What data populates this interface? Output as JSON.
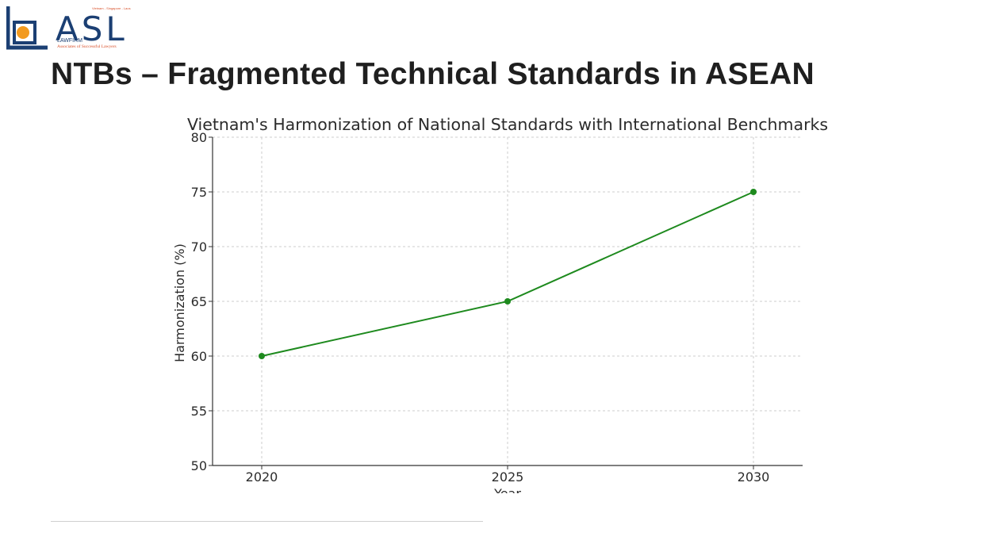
{
  "logo": {
    "wordmark": "ASL",
    "tagline_top": "Vietnam - Singapore - Laos",
    "lawfirm": "LAWFIRM",
    "subtitle": "Associates of Successful Lawyers",
    "colors": {
      "navy": "#1b3f73",
      "orange": "#f29a1f",
      "red": "#d9502a"
    }
  },
  "slide_title": "NTBs – Fragmented Technical Standards in ASEAN",
  "chart_data": {
    "type": "line",
    "title": "Vietnam's Harmonization of National Standards with International Benchmarks",
    "xlabel": "Year",
    "ylabel": "Harmonization (%)",
    "x": [
      2020,
      2025,
      2030
    ],
    "series": [
      {
        "values": [
          60,
          65,
          75
        ],
        "color": "#1e8a1e",
        "marker": "circle"
      }
    ],
    "xticks": [
      2020,
      2025,
      2030
    ],
    "yticks": [
      50,
      55,
      60,
      65,
      70,
      75,
      80
    ],
    "ylim": [
      50,
      80
    ],
    "grid": true,
    "grid_style": "dashed"
  }
}
